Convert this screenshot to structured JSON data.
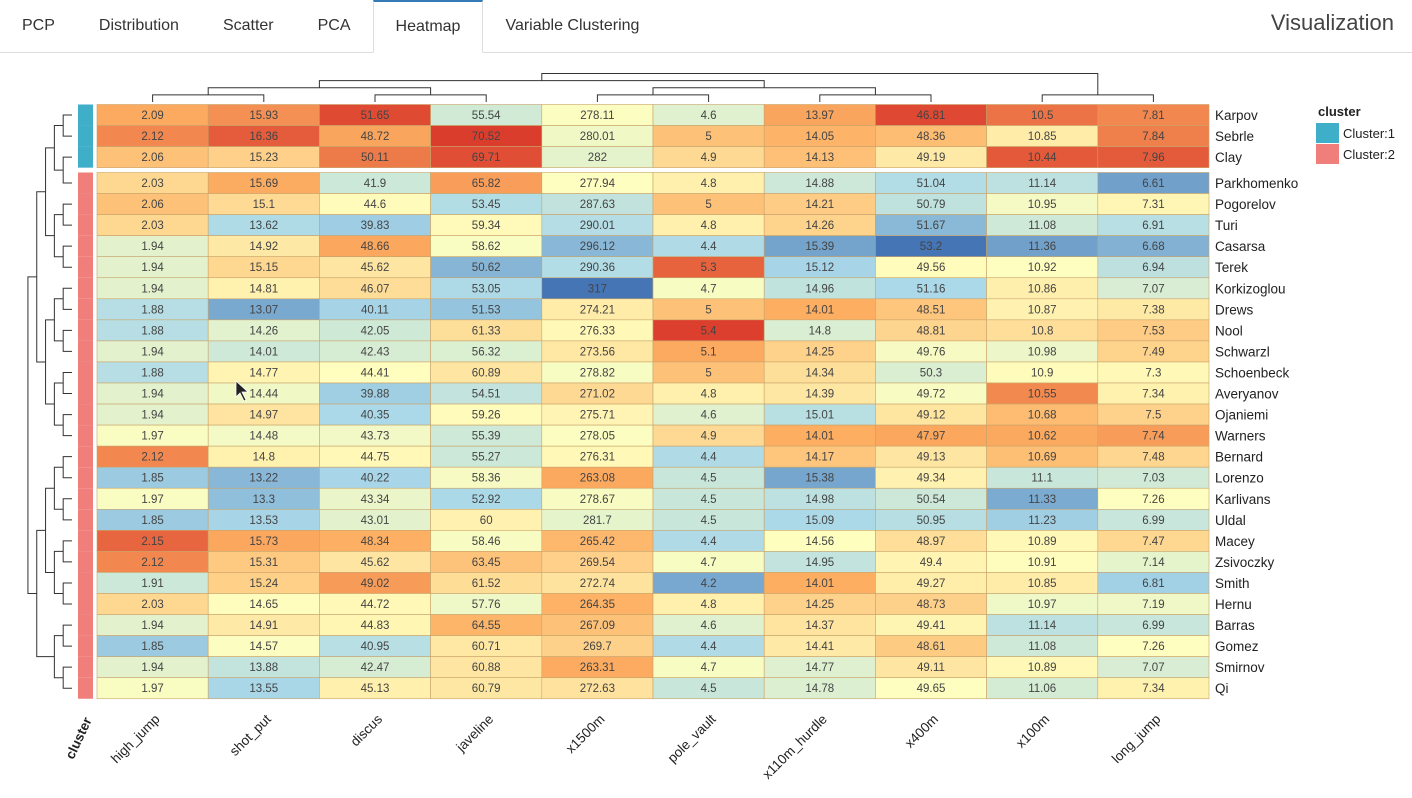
{
  "app": {
    "tabs": [
      {
        "label": "PCP",
        "active": false
      },
      {
        "label": "Distribution",
        "active": false
      },
      {
        "label": "Scatter",
        "active": false
      },
      {
        "label": "PCA",
        "active": false
      },
      {
        "label": "Heatmap",
        "active": true
      },
      {
        "label": "Variable Clustering",
        "active": false
      }
    ],
    "title": "Visualization"
  },
  "chart_data": {
    "type": "heatmap",
    "columns": [
      "high_jump",
      "shot_put",
      "discus",
      "javeline",
      "x1500m",
      "pole_vault",
      "x110m_hurdle",
      "x400m",
      "x100m",
      "long_jump"
    ],
    "rows": [
      "Karpov",
      "Sebrle",
      "Clay",
      "Parkhomenko",
      "Pogorelov",
      "Turi",
      "Casarsa",
      "Terek",
      "Korkizoglou",
      "Drews",
      "Nool",
      "Schwarzl",
      "Schoenbeck",
      "Averyanov",
      "Ojaniemi",
      "Warners",
      "Bernard",
      "Lorenzo",
      "Karlivans",
      "Uldal",
      "Macey",
      "Zsivoczky",
      "Smith",
      "Hernu",
      "Barras",
      "Gomez",
      "Smirnov",
      "Qi"
    ],
    "cluster": [
      1,
      1,
      1,
      2,
      2,
      2,
      2,
      2,
      2,
      2,
      2,
      2,
      2,
      2,
      2,
      2,
      2,
      2,
      2,
      2,
      2,
      2,
      2,
      2,
      2,
      2,
      2,
      2
    ],
    "values": [
      [
        "2.09",
        "15.93",
        "51.65",
        "55.54",
        "278.11",
        "4.6",
        "13.97",
        "46.81",
        "10.5",
        "7.81"
      ],
      [
        "2.12",
        "16.36",
        "48.72",
        "70.52",
        "280.01",
        "5",
        "14.05",
        "48.36",
        "10.85",
        "7.84"
      ],
      [
        "2.06",
        "15.23",
        "50.11",
        "69.71",
        "282",
        "4.9",
        "14.13",
        "49.19",
        "10.44",
        "7.96"
      ],
      [
        "2.03",
        "15.69",
        "41.9",
        "65.82",
        "277.94",
        "4.8",
        "14.88",
        "51.04",
        "11.14",
        "6.61"
      ],
      [
        "2.06",
        "15.1",
        "44.6",
        "53.45",
        "287.63",
        "5",
        "14.21",
        "50.79",
        "10.95",
        "7.31"
      ],
      [
        "2.03",
        "13.62",
        "39.83",
        "59.34",
        "290.01",
        "4.8",
        "14.26",
        "51.67",
        "11.08",
        "6.91"
      ],
      [
        "1.94",
        "14.92",
        "48.66",
        "58.62",
        "296.12",
        "4.4",
        "15.39",
        "53.2",
        "11.36",
        "6.68"
      ],
      [
        "1.94",
        "15.15",
        "45.62",
        "50.62",
        "290.36",
        "5.3",
        "15.12",
        "49.56",
        "10.92",
        "6.94"
      ],
      [
        "1.94",
        "14.81",
        "46.07",
        "53.05",
        "317",
        "4.7",
        "14.96",
        "51.16",
        "10.86",
        "7.07"
      ],
      [
        "1.88",
        "13.07",
        "40.11",
        "51.53",
        "274.21",
        "5",
        "14.01",
        "48.51",
        "10.87",
        "7.38"
      ],
      [
        "1.88",
        "14.26",
        "42.05",
        "61.33",
        "276.33",
        "5.4",
        "14.8",
        "48.81",
        "10.8",
        "7.53"
      ],
      [
        "1.94",
        "14.01",
        "42.43",
        "56.32",
        "273.56",
        "5.1",
        "14.25",
        "49.76",
        "10.98",
        "7.49"
      ],
      [
        "1.88",
        "14.77",
        "44.41",
        "60.89",
        "278.82",
        "5",
        "14.34",
        "50.3",
        "10.9",
        "7.3"
      ],
      [
        "1.94",
        "14.44",
        "39.88",
        "54.51",
        "271.02",
        "4.8",
        "14.39",
        "49.72",
        "10.55",
        "7.34"
      ],
      [
        "1.94",
        "14.97",
        "40.35",
        "59.26",
        "275.71",
        "4.6",
        "15.01",
        "49.12",
        "10.68",
        "7.5"
      ],
      [
        "1.97",
        "14.48",
        "43.73",
        "55.39",
        "278.05",
        "4.9",
        "14.01",
        "47.97",
        "10.62",
        "7.74"
      ],
      [
        "2.12",
        "14.8",
        "44.75",
        "55.27",
        "276.31",
        "4.4",
        "14.17",
        "49.13",
        "10.69",
        "7.48"
      ],
      [
        "1.85",
        "13.22",
        "40.22",
        "58.36",
        "263.08",
        "4.5",
        "15.38",
        "49.34",
        "11.1",
        "7.03"
      ],
      [
        "1.97",
        "13.3",
        "43.34",
        "52.92",
        "278.67",
        "4.5",
        "14.98",
        "50.54",
        "11.33",
        "7.26"
      ],
      [
        "1.85",
        "13.53",
        "43.01",
        "60",
        "281.7",
        "4.5",
        "15.09",
        "50.95",
        "11.23",
        "6.99"
      ],
      [
        "2.15",
        "15.73",
        "48.34",
        "58.46",
        "265.42",
        "4.4",
        "14.56",
        "48.97",
        "10.89",
        "7.47"
      ],
      [
        "2.12",
        "15.31",
        "45.62",
        "63.45",
        "269.54",
        "4.7",
        "14.95",
        "49.4",
        "10.91",
        "7.14"
      ],
      [
        "1.91",
        "15.24",
        "49.02",
        "61.52",
        "272.74",
        "4.2",
        "14.01",
        "49.27",
        "10.85",
        "6.81"
      ],
      [
        "2.03",
        "14.65",
        "44.72",
        "57.76",
        "264.35",
        "4.8",
        "14.25",
        "48.73",
        "10.97",
        "7.19"
      ],
      [
        "1.94",
        "14.91",
        "44.83",
        "64.55",
        "267.09",
        "4.6",
        "14.37",
        "49.41",
        "11.14",
        "6.99"
      ],
      [
        "1.85",
        "14.57",
        "40.95",
        "60.71",
        "269.7",
        "4.4",
        "14.41",
        "48.61",
        "11.08",
        "7.26"
      ],
      [
        "1.94",
        "13.88",
        "42.47",
        "60.88",
        "263.31",
        "4.7",
        "14.77",
        "49.11",
        "10.89",
        "7.07"
      ],
      [
        "1.97",
        "13.55",
        "45.13",
        "60.79",
        "272.63",
        "4.5",
        "14.78",
        "49.65",
        "11.06",
        "7.34"
      ]
    ],
    "color_direction": [
      1,
      1,
      1,
      1,
      -1,
      1,
      -1,
      -1,
      -1,
      1
    ],
    "cluster_colors": {
      "1": "#3eaec9",
      "2": "#f07f7b"
    },
    "colorscale": [
      "#4575b4",
      "#abd9e9",
      "#ffffbf",
      "#fdae61",
      "#d73027"
    ],
    "cluster_label": "cluster",
    "legend": {
      "title": "cluster",
      "entries": [
        {
          "label": "Cluster:1",
          "color": "#3eaec9"
        },
        {
          "label": "Cluster:2",
          "color": "#f07f7b"
        }
      ]
    }
  }
}
